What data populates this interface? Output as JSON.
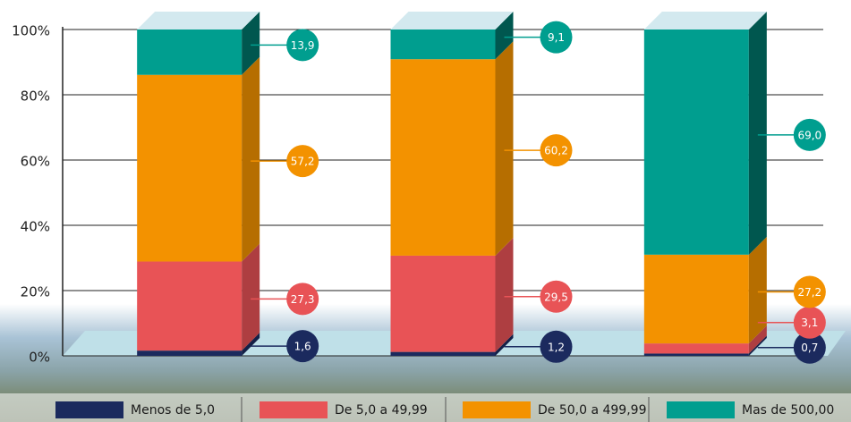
{
  "chart_data": {
    "type": "stacked_bar_3d",
    "categories": [
      null,
      null,
      null
    ],
    "series": [
      {
        "name": "Menos de 5,0",
        "color": "#1b2a5e",
        "values": [
          1.6,
          1.2,
          0.7
        ],
        "value_labels": [
          "1,6",
          "1,2",
          "0,7"
        ]
      },
      {
        "name": "De 5,0 a 49,99",
        "color": "#e85356",
        "values": [
          27.3,
          29.5,
          3.1
        ],
        "value_labels": [
          "27,3",
          "29,5",
          "3,1"
        ]
      },
      {
        "name": "De 50,0 a 499,99",
        "color": "#f39200",
        "values": [
          57.2,
          60.2,
          27.2
        ],
        "value_labels": [
          "57,2",
          "60,2",
          "27,2"
        ]
      },
      {
        "name": "Mas de 500,00",
        "color": "#009e8f",
        "values": [
          13.9,
          9.1,
          69.0
        ],
        "value_labels": [
          "13,9",
          "9,1",
          "69,0"
        ]
      }
    ],
    "ylim": [
      0,
      100
    ],
    "yticks": [
      {
        "value": 0,
        "label": "0%"
      },
      {
        "value": 20,
        "label": "20%"
      },
      {
        "value": 40,
        "label": "40%"
      },
      {
        "value": 60,
        "label": "60%"
      },
      {
        "value": 80,
        "label": "80%"
      },
      {
        "value": 100,
        "label": "100%"
      }
    ],
    "grid": true
  }
}
